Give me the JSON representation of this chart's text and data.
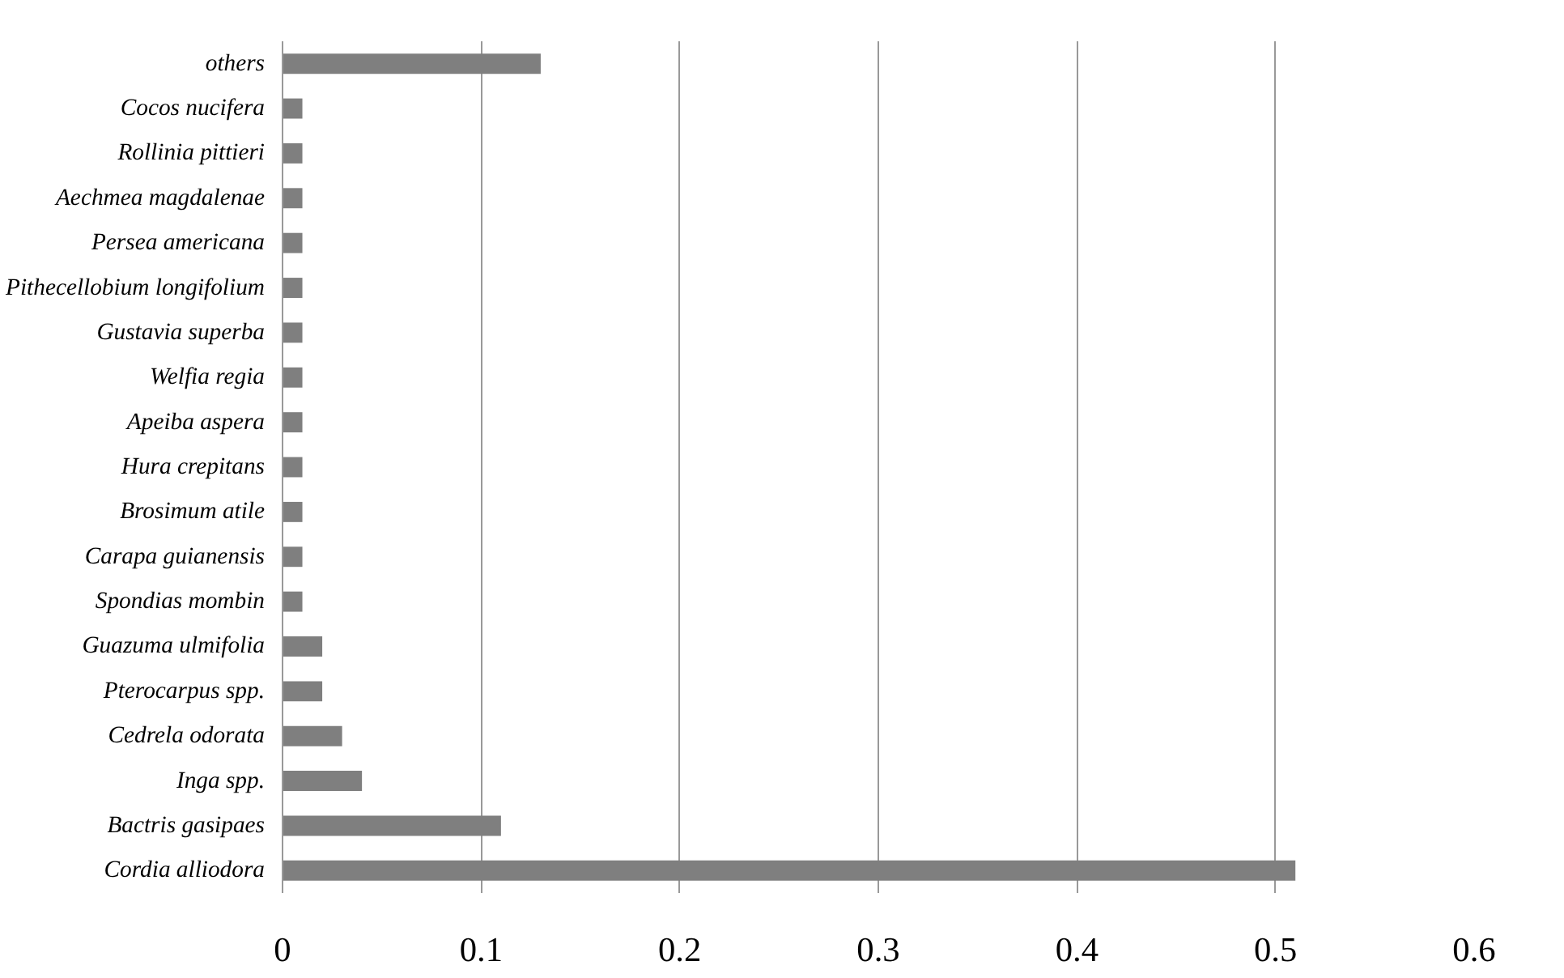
{
  "chart_data": {
    "type": "bar",
    "orientation": "horizontal",
    "categories": [
      "others",
      "Cocos nucifera",
      "Rollinia pittieri",
      "Aechmea magdalenae",
      "Persea americana",
      "Pithecellobium longifolium",
      "Gustavia superba",
      "Welfia regia",
      "Apeiba aspera",
      "Hura crepitans",
      "Brosimum atile",
      "Carapa guianensis",
      "Spondias mombin",
      "Guazuma ulmifolia",
      "Pterocarpus spp.",
      "Cedrela odorata",
      "Inga spp.",
      "Bactris gasipaes",
      "Cordia alliodora"
    ],
    "values": [
      0.13,
      0.01,
      0.01,
      0.01,
      0.01,
      0.01,
      0.01,
      0.01,
      0.01,
      0.01,
      0.01,
      0.01,
      0.01,
      0.02,
      0.02,
      0.03,
      0.04,
      0.11,
      0.51
    ],
    "color": "#7f7f7f",
    "xlim": [
      0,
      0.6
    ],
    "xticks": [
      0,
      0.1,
      0.2,
      0.3,
      0.4,
      0.5,
      0.6
    ],
    "grid": "x"
  }
}
